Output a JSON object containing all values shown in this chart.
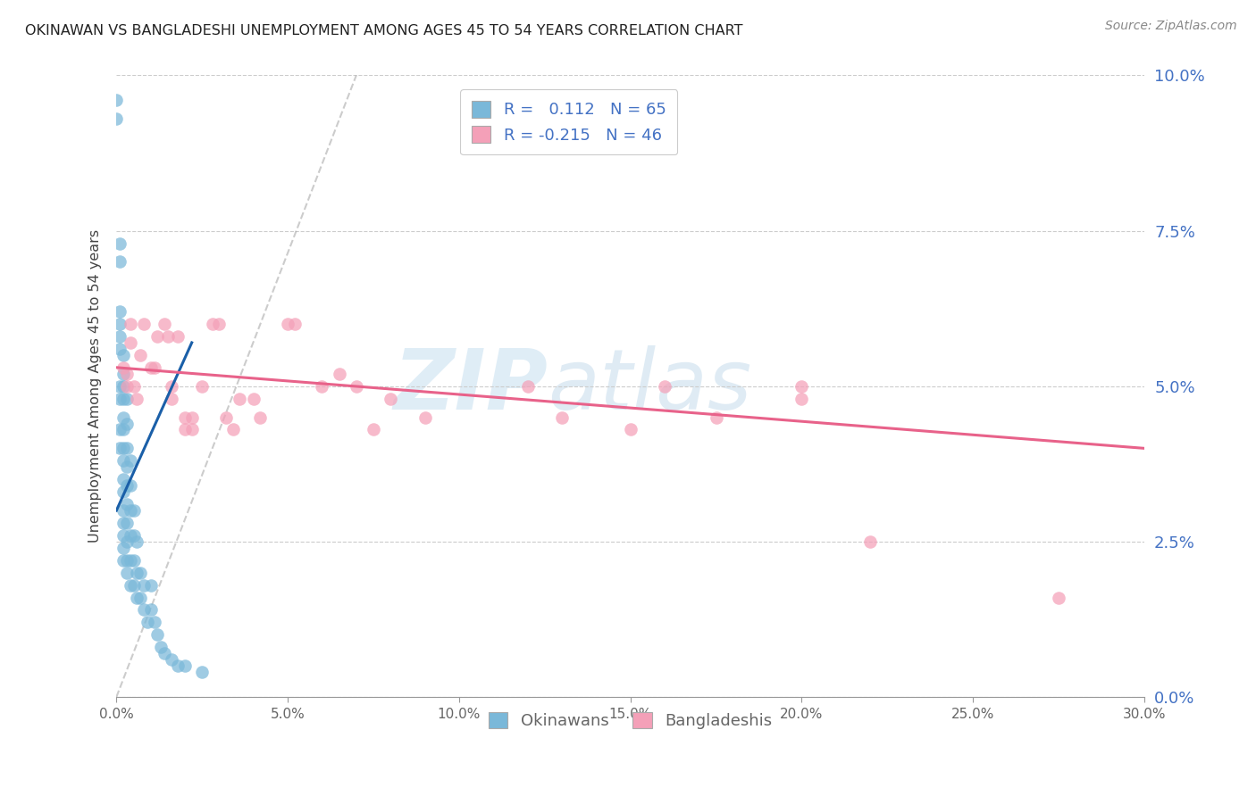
{
  "title": "OKINAWAN VS BANGLADESHI UNEMPLOYMENT AMONG AGES 45 TO 54 YEARS CORRELATION CHART",
  "source": "Source: ZipAtlas.com",
  "ylabel": "Unemployment Among Ages 45 to 54 years",
  "xlim": [
    0.0,
    0.3
  ],
  "ylim": [
    0.0,
    0.1
  ],
  "xtick_vals": [
    0.0,
    0.05,
    0.1,
    0.15,
    0.2,
    0.25,
    0.3
  ],
  "xtick_labels": [
    "0.0%",
    "5.0%",
    "10.0%",
    "15.0%",
    "20.0%",
    "25.0%",
    "30.0%"
  ],
  "ytick_vals": [
    0.0,
    0.025,
    0.05,
    0.075,
    0.1
  ],
  "ytick_labels_right": [
    "0.0%",
    "2.5%",
    "5.0%",
    "7.5%",
    "10.0%"
  ],
  "okinawan_color": "#7ab8d9",
  "bangladeshi_color": "#f4a0b8",
  "trend_okinawan_color": "#1a5fa8",
  "trend_bangladeshi_color": "#e8628a",
  "watermark_text": "ZIPatlas",
  "legend1_label1": "R =   0.112   N = 65",
  "legend1_label2": "R = -0.215   N = 46",
  "legend2_label1": "Okinawans",
  "legend2_label2": "Bangladeshis",
  "okinawan_x": [
    0.0,
    0.0,
    0.001,
    0.001,
    0.001,
    0.001,
    0.001,
    0.001,
    0.001,
    0.001,
    0.001,
    0.001,
    0.002,
    0.002,
    0.002,
    0.002,
    0.002,
    0.002,
    0.002,
    0.002,
    0.002,
    0.002,
    0.002,
    0.002,
    0.002,
    0.002,
    0.002,
    0.003,
    0.003,
    0.003,
    0.003,
    0.003,
    0.003,
    0.003,
    0.003,
    0.003,
    0.003,
    0.004,
    0.004,
    0.004,
    0.004,
    0.004,
    0.004,
    0.005,
    0.005,
    0.005,
    0.005,
    0.006,
    0.006,
    0.006,
    0.007,
    0.007,
    0.008,
    0.008,
    0.009,
    0.01,
    0.01,
    0.011,
    0.012,
    0.013,
    0.014,
    0.016,
    0.018,
    0.02,
    0.025
  ],
  "okinawan_y": [
    0.093,
    0.096,
    0.07,
    0.073,
    0.06,
    0.062,
    0.058,
    0.056,
    0.05,
    0.048,
    0.043,
    0.04,
    0.055,
    0.052,
    0.048,
    0.045,
    0.043,
    0.04,
    0.038,
    0.035,
    0.033,
    0.03,
    0.028,
    0.026,
    0.024,
    0.022,
    0.05,
    0.048,
    0.044,
    0.04,
    0.037,
    0.034,
    0.031,
    0.028,
    0.025,
    0.022,
    0.02,
    0.038,
    0.034,
    0.03,
    0.026,
    0.022,
    0.018,
    0.03,
    0.026,
    0.022,
    0.018,
    0.025,
    0.02,
    0.016,
    0.02,
    0.016,
    0.018,
    0.014,
    0.012,
    0.018,
    0.014,
    0.012,
    0.01,
    0.008,
    0.007,
    0.006,
    0.005,
    0.005,
    0.004
  ],
  "bangladeshi_x": [
    0.002,
    0.003,
    0.003,
    0.004,
    0.004,
    0.005,
    0.006,
    0.007,
    0.008,
    0.01,
    0.011,
    0.012,
    0.014,
    0.015,
    0.016,
    0.016,
    0.018,
    0.02,
    0.02,
    0.022,
    0.022,
    0.025,
    0.028,
    0.03,
    0.032,
    0.034,
    0.036,
    0.04,
    0.042,
    0.05,
    0.052,
    0.06,
    0.065,
    0.07,
    0.075,
    0.08,
    0.09,
    0.12,
    0.13,
    0.15,
    0.16,
    0.175,
    0.2,
    0.2,
    0.22,
    0.275
  ],
  "bangladeshi_y": [
    0.053,
    0.052,
    0.05,
    0.06,
    0.057,
    0.05,
    0.048,
    0.055,
    0.06,
    0.053,
    0.053,
    0.058,
    0.06,
    0.058,
    0.048,
    0.05,
    0.058,
    0.045,
    0.043,
    0.043,
    0.045,
    0.05,
    0.06,
    0.06,
    0.045,
    0.043,
    0.048,
    0.048,
    0.045,
    0.06,
    0.06,
    0.05,
    0.052,
    0.05,
    0.043,
    0.048,
    0.045,
    0.05,
    0.045,
    0.043,
    0.05,
    0.045,
    0.05,
    0.048,
    0.025,
    0.016
  ],
  "ok_trend_x": [
    0.0,
    0.022
  ],
  "ok_trend_y": [
    0.03,
    0.057
  ],
  "bd_trend_x": [
    0.0,
    0.3
  ],
  "bd_trend_y": [
    0.053,
    0.04
  ]
}
